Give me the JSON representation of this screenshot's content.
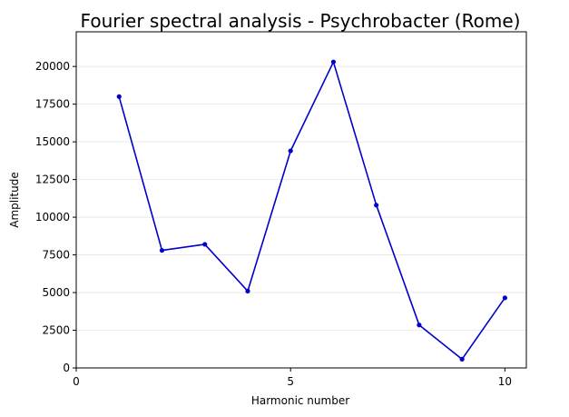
{
  "chart_data": {
    "type": "line",
    "title": "Fourier spectral analysis - Psychrobacter (Rome)",
    "xlabel": "Harmonic number",
    "ylabel": "Amplitude",
    "xlim": [
      0,
      10.5
    ],
    "ylim": [
      0,
      22300
    ],
    "xticks": [
      0,
      5,
      10
    ],
    "yticks": [
      0,
      2500,
      5000,
      7500,
      10000,
      12500,
      15000,
      17500,
      20000
    ],
    "grid": "horizontal",
    "color": "#0000cc",
    "series": [
      {
        "x": [
          1,
          2,
          3,
          4,
          5,
          6,
          7,
          8,
          9,
          10
        ],
        "values": [
          18000,
          7800,
          8200,
          5100,
          14400,
          20300,
          10800,
          2850,
          580,
          4650
        ]
      }
    ]
  }
}
